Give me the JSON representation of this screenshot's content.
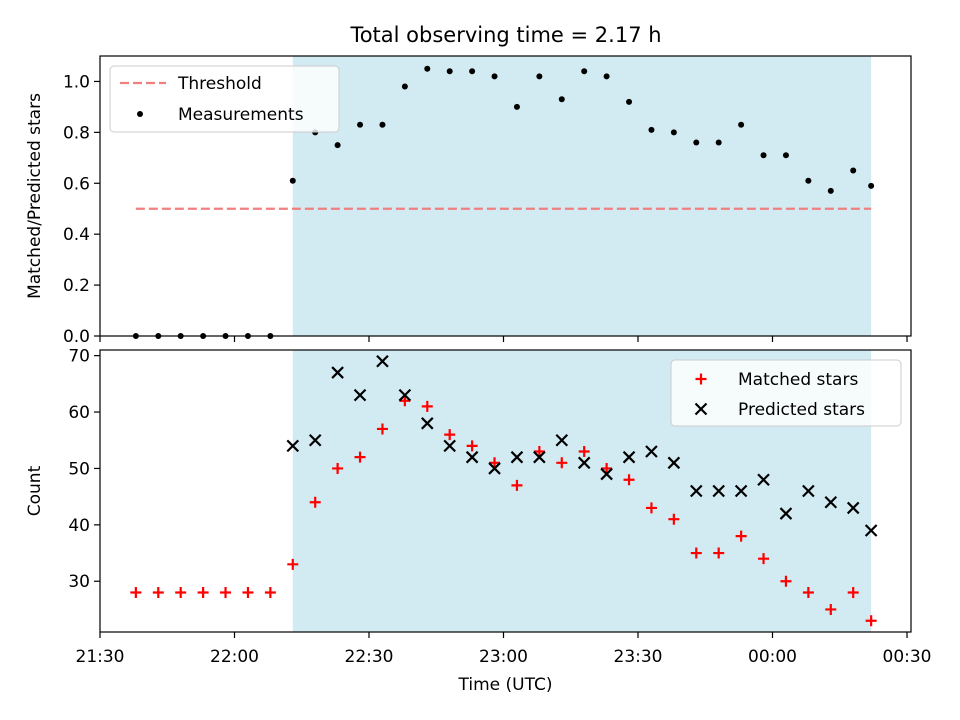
{
  "figure": {
    "title": "Total observing time = 2.17 h"
  },
  "chart_data": [
    {
      "type": "scatter",
      "title": "Total observing time = 2.17 h",
      "xlabel": "",
      "ylabel": "Matched/Predicted stars",
      "ylim": [
        0,
        1.1
      ],
      "yticks": [
        0.0,
        0.2,
        0.4,
        0.6,
        0.8,
        1.0
      ],
      "yticklabels": [
        "0.0",
        "0.2",
        "0.4",
        "0.6",
        "0.8",
        "1.0"
      ],
      "legend": "upper left",
      "shaded_region": {
        "from": "22:13",
        "to": "00:22",
        "color": "#add8e6"
      },
      "threshold": {
        "name": "Threshold",
        "y": 0.5,
        "from": "21:38",
        "to": "00:22",
        "color": "#f08080",
        "style": "dashed"
      },
      "series": [
        {
          "name": "Measurements",
          "marker": "dot",
          "color": "#000000",
          "x": [
            "21:38",
            "21:43",
            "21:48",
            "21:53",
            "21:58",
            "22:03",
            "22:08",
            "22:13",
            "22:18",
            "22:23",
            "22:28",
            "22:33",
            "22:38",
            "22:43",
            "22:48",
            "22:53",
            "22:58",
            "23:03",
            "23:08",
            "23:13",
            "23:18",
            "23:23",
            "23:28",
            "23:33",
            "23:38",
            "23:43",
            "23:48",
            "23:53",
            "23:58",
            "00:03",
            "00:08",
            "00:13",
            "00:18",
            "00:22"
          ],
          "y": [
            0,
            0,
            0,
            0,
            0,
            0,
            0,
            0.61,
            0.8,
            0.75,
            0.83,
            0.83,
            0.98,
            1.05,
            1.04,
            1.04,
            1.02,
            0.9,
            1.02,
            0.93,
            1.04,
            1.02,
            0.92,
            0.81,
            0.8,
            0.76,
            0.76,
            0.83,
            0.71,
            0.71,
            0.61,
            0.57,
            0.65,
            0.59
          ]
        }
      ]
    },
    {
      "type": "scatter",
      "xlabel": "Time (UTC)",
      "ylabel": "Count",
      "ylim": [
        21,
        71
      ],
      "yticks": [
        30,
        40,
        50,
        60,
        70
      ],
      "xticklabels": [
        "21:30",
        "22:00",
        "22:30",
        "23:00",
        "23:30",
        "00:00",
        "00:30"
      ],
      "legend": "upper right",
      "shaded_region": {
        "from": "22:13",
        "to": "00:22",
        "color": "#add8e6"
      },
      "series": [
        {
          "name": "Matched stars",
          "marker": "plus",
          "color": "#ff0000",
          "x": [
            "21:38",
            "21:43",
            "21:48",
            "21:53",
            "21:58",
            "22:03",
            "22:08",
            "22:13",
            "22:18",
            "22:23",
            "22:28",
            "22:33",
            "22:38",
            "22:43",
            "22:48",
            "22:53",
            "22:58",
            "23:03",
            "23:08",
            "23:13",
            "23:18",
            "23:23",
            "23:28",
            "23:33",
            "23:38",
            "23:43",
            "23:48",
            "23:53",
            "23:58",
            "00:03",
            "00:08",
            "00:13",
            "00:18",
            "00:22"
          ],
          "y": [
            28,
            28,
            28,
            28,
            28,
            28,
            28,
            33,
            44,
            50,
            52,
            57,
            62,
            61,
            56,
            54,
            51,
            47,
            53,
            51,
            53,
            50,
            48,
            43,
            41,
            35,
            35,
            38,
            34,
            30,
            28,
            25,
            28,
            23
          ]
        },
        {
          "name": "Predicted stars",
          "marker": "x",
          "color": "#000000",
          "x": [
            "22:13",
            "22:18",
            "22:23",
            "22:28",
            "22:33",
            "22:38",
            "22:43",
            "22:48",
            "22:53",
            "22:58",
            "23:03",
            "23:08",
            "23:13",
            "23:18",
            "23:23",
            "23:28",
            "23:33",
            "23:38",
            "23:43",
            "23:48",
            "23:53",
            "23:58",
            "00:03",
            "00:08",
            "00:13",
            "00:18",
            "00:22"
          ],
          "y": [
            54,
            55,
            67,
            63,
            69,
            63,
            58,
            54,
            52,
            50,
            52,
            52,
            55,
            51,
            49,
            52,
            53,
            51,
            46,
            46,
            46,
            48,
            42,
            46,
            44,
            43,
            39
          ]
        }
      ]
    }
  ]
}
